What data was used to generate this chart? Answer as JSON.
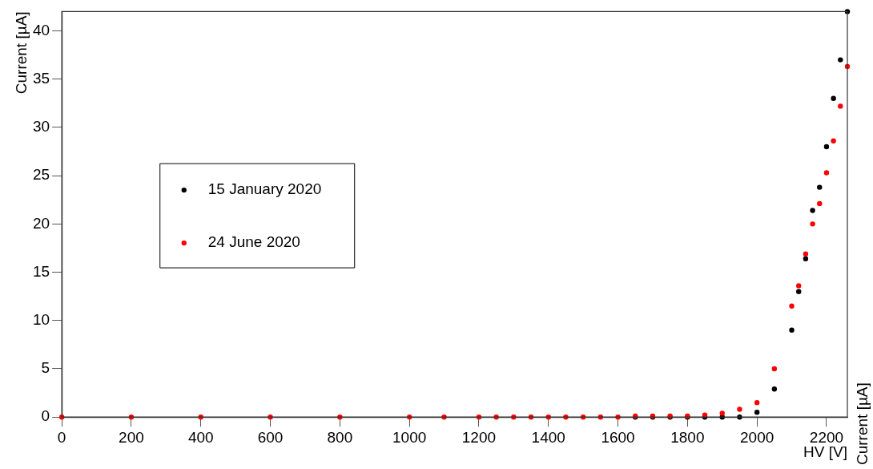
{
  "chart_data": {
    "type": "scatter",
    "xlabel": "HV [V]",
    "ylabel": "Current [µA]",
    "xlim": [
      0,
      2260
    ],
    "xticks": [
      0,
      200,
      400,
      600,
      800,
      1000,
      1200,
      1400,
      1600,
      1800,
      2000,
      2200
    ],
    "ylim": [
      0,
      42
    ],
    "yticks": [
      0,
      5,
      10,
      15,
      20,
      25,
      30,
      35,
      40
    ],
    "grid": false,
    "legend": "left",
    "marker": "circle",
    "annotations": [
      "Current [µA]"
    ],
    "series": [
      {
        "name": "15 January 2020",
        "color": "#000000",
        "x": [
          1650,
          1700,
          1750,
          1800,
          1850,
          1900,
          1950,
          2000,
          2050,
          2100,
          2120,
          2140,
          2160,
          2180,
          2200,
          2220,
          2240,
          2260
        ],
        "values": [
          0,
          0,
          0,
          0,
          0,
          0,
          0,
          0.5,
          2.9,
          9.0,
          13.0,
          16.4,
          21.4,
          23.8,
          28.0,
          33.0,
          37.0,
          42.0
        ]
      },
      {
        "name": "24 June 2020",
        "color": "#ff0000",
        "x": [
          0,
          200,
          400,
          600,
          800,
          1000,
          1100,
          1200,
          1250,
          1300,
          1350,
          1400,
          1450,
          1500,
          1550,
          1600,
          1650,
          1700,
          1750,
          1800,
          1850,
          1900,
          1950,
          2000,
          2050,
          2100,
          2120,
          2140,
          2160,
          2180,
          2200,
          2220,
          2240,
          2260
        ],
        "values": [
          0,
          0,
          0,
          0,
          0,
          0,
          0,
          0,
          0,
          0,
          0,
          0,
          0,
          0,
          0,
          0,
          0.1,
          0.1,
          0.1,
          0.1,
          0.2,
          0.4,
          0.8,
          1.5,
          5.0,
          11.5,
          13.6,
          16.9,
          20.0,
          22.1,
          25.3,
          28.6,
          32.2,
          36.3
        ]
      }
    ]
  }
}
